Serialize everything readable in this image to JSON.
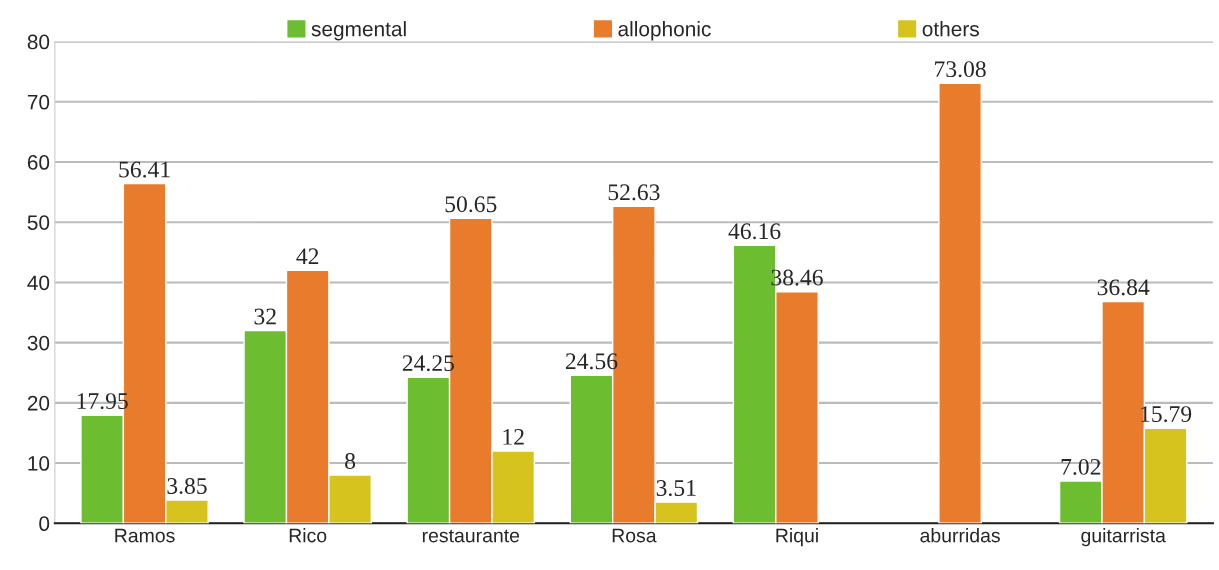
{
  "chart_data": {
    "type": "bar",
    "categories": [
      "Ramos",
      "Rico",
      "restaurante",
      "Rosa",
      "Riqui",
      "aburridas",
      "guitarrista"
    ],
    "series": [
      {
        "name": "segmental",
        "color": "#6cbd2f",
        "values": [
          17.95,
          32,
          24.25,
          24.56,
          46.16,
          null,
          7.02
        ]
      },
      {
        "name": "allophonic",
        "color": "#e97c2c",
        "values": [
          56.41,
          42,
          50.65,
          52.63,
          38.46,
          73.08,
          36.84
        ]
      },
      {
        "name": "others",
        "color": "#d6c31d",
        "values": [
          3.85,
          8,
          12,
          3.51,
          null,
          null,
          15.79
        ]
      }
    ],
    "ylim": [
      0,
      80
    ],
    "yticks": [
      0,
      10,
      20,
      30,
      40,
      50,
      60,
      70,
      80
    ],
    "grid": "y",
    "legend": "top",
    "data_labels": true
  }
}
